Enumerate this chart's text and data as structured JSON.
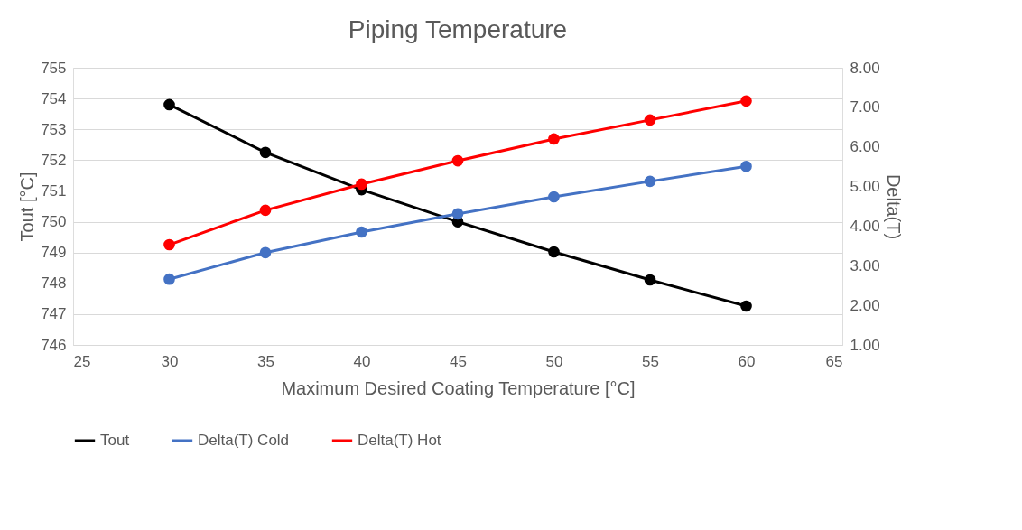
{
  "chart_data": {
    "type": "line",
    "title": "Piping Temperature",
    "xlabel": "Maximum Desired Coating Temperature [°C]",
    "ylabel": "Tout [°C]",
    "y2label": "Delta(T)",
    "x": [
      30,
      35,
      40,
      45,
      50,
      55,
      60
    ],
    "series": [
      {
        "name": "Tout",
        "color": "#000000",
        "values": [
          753.8,
          752.25,
          751.04,
          750.0,
          749.02,
          748.11,
          747.26
        ]
      },
      {
        "name": "Delta(T) Cold",
        "color": "#4472c4",
        "axis": "y2",
        "values": [
          2.66,
          3.33,
          3.85,
          4.31,
          4.74,
          5.13,
          5.51
        ]
      },
      {
        "name": "Delta(T) Hot",
        "color": "#ff0000",
        "axis": "y2",
        "values": [
          3.53,
          4.4,
          5.06,
          5.65,
          6.2,
          6.68,
          7.16
        ]
      }
    ],
    "xlim": [
      25,
      65
    ],
    "xticks": [
      25,
      30,
      35,
      40,
      45,
      50,
      55,
      60,
      65
    ],
    "ylim": [
      746,
      755
    ],
    "yticks": [
      746,
      747,
      748,
      749,
      750,
      751,
      752,
      753,
      754,
      755
    ],
    "y2lim": [
      1,
      8
    ],
    "y2ticks": [
      {
        "value": 1,
        "label": "1.00"
      },
      {
        "value": 2,
        "label": "2.00"
      },
      {
        "value": 3,
        "label": "3.00"
      },
      {
        "value": 4,
        "label": "4.00"
      },
      {
        "value": 5,
        "label": "5.00"
      },
      {
        "value": 6,
        "label": "6.00"
      },
      {
        "value": 7,
        "label": "7.00"
      },
      {
        "value": 8,
        "label": "8.00"
      }
    ],
    "grid": "y",
    "legend": "bottom",
    "marker": "circle",
    "line_style": "solid"
  }
}
